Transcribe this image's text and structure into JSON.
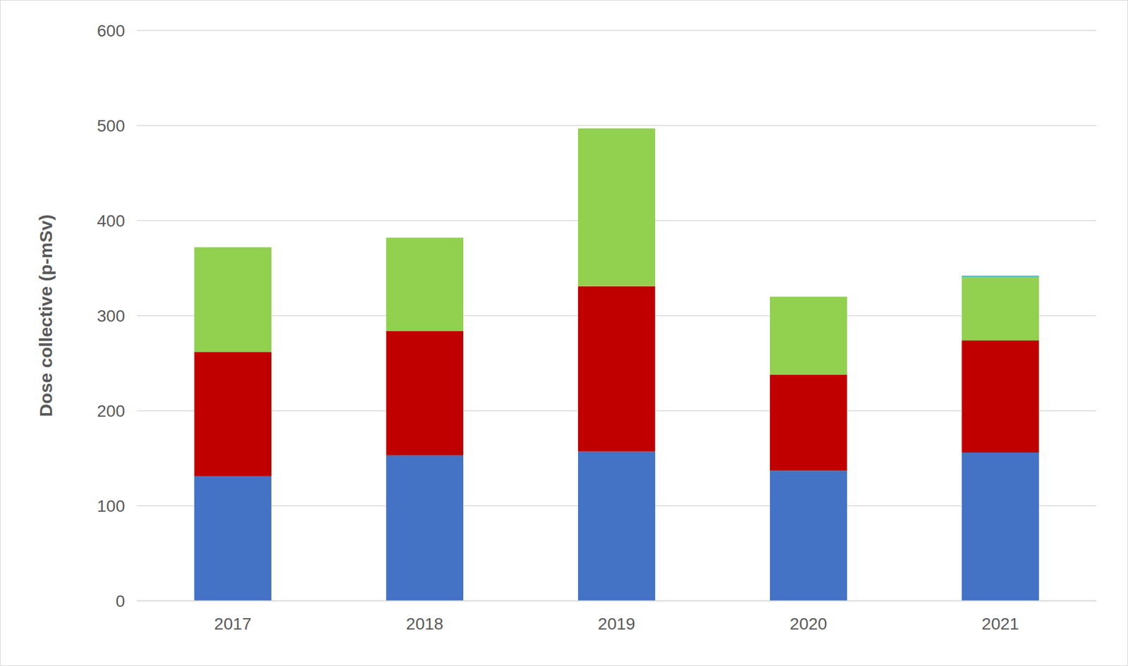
{
  "chart_data": {
    "type": "bar",
    "y_label": "Dose collective (p-mSv)",
    "categories": [
      "2017",
      "2018",
      "2019",
      "2020",
      "2021"
    ],
    "series": [
      {
        "color": "#4472c4",
        "values": [
          131,
          153,
          157,
          137,
          156
        ]
      },
      {
        "color": "#c00000",
        "values": [
          131,
          131,
          174,
          101,
          118
        ]
      },
      {
        "color": "#92d050",
        "values": [
          110,
          98,
          166,
          82,
          67
        ]
      },
      {
        "color": "#00b0f0",
        "values": [
          0,
          0,
          0,
          0,
          1
        ]
      }
    ],
    "stacked": true,
    "ylim": [
      0,
      600
    ],
    "yticks": [
      0,
      100,
      200,
      300,
      400,
      500,
      600
    ],
    "grid": true
  }
}
